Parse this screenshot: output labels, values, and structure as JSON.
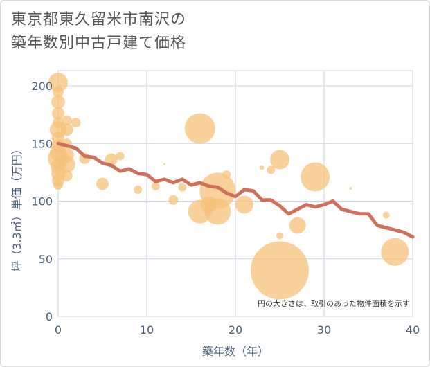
{
  "title_lines": [
    "東京都東久留米市南沢の",
    "築年数別中古戸建て価格"
  ],
  "colors": {
    "bubble": "#f5c27a",
    "line": "#d0705b",
    "grid": "#c9d6e3",
    "axis_text": "#4a5f78"
  },
  "chart_data": {
    "type": "scatter",
    "xlabel": "築年数（年）",
    "ylabel": "坪（3.3㎡）単価（万円）",
    "xlim": [
      0,
      40
    ],
    "ylim": [
      0,
      210
    ],
    "xticks": [
      0,
      10,
      20,
      30,
      40
    ],
    "yticks": [
      0,
      50,
      100,
      150,
      200
    ],
    "grid": true,
    "note": "円の大きさは、取引のあった物件面積を示す",
    "trend": {
      "x": [
        0,
        1,
        2,
        3,
        4,
        5,
        6,
        7,
        8,
        9,
        10,
        11,
        12,
        13,
        14,
        15,
        16,
        17,
        18,
        19,
        20,
        21,
        22,
        23,
        24,
        25,
        26,
        27,
        28,
        29,
        30,
        31,
        32,
        33,
        34,
        35,
        36,
        37,
        38,
        39,
        40
      ],
      "y": [
        150,
        148,
        146,
        139,
        138,
        133,
        131,
        126,
        128,
        124,
        123,
        117,
        119,
        116,
        119,
        114,
        116,
        113,
        112,
        107,
        104,
        110,
        109,
        101,
        101,
        96,
        89,
        93,
        97,
        95,
        97,
        100,
        93,
        91,
        89,
        89,
        79,
        77,
        75,
        73,
        69
      ]
    },
    "bubbles": [
      {
        "x": 0,
        "y": 203,
        "s": 14
      },
      {
        "x": 0,
        "y": 195,
        "s": 8
      },
      {
        "x": 0,
        "y": 186,
        "s": 10
      },
      {
        "x": 0,
        "y": 176,
        "s": 9
      },
      {
        "x": 0,
        "y": 168,
        "s": 8
      },
      {
        "x": 0,
        "y": 162,
        "s": 12
      },
      {
        "x": 0,
        "y": 155,
        "s": 9
      },
      {
        "x": 0,
        "y": 148,
        "s": 10
      },
      {
        "x": 0,
        "y": 142,
        "s": 12
      },
      {
        "x": 0,
        "y": 137,
        "s": 15
      },
      {
        "x": 0,
        "y": 130,
        "s": 11
      },
      {
        "x": 0,
        "y": 124,
        "s": 10
      },
      {
        "x": 0,
        "y": 118,
        "s": 9
      },
      {
        "x": 0,
        "y": 114,
        "s": 7
      },
      {
        "x": 1,
        "y": 170,
        "s": 7
      },
      {
        "x": 1,
        "y": 162,
        "s": 9
      },
      {
        "x": 1,
        "y": 150,
        "s": 7
      },
      {
        "x": 1,
        "y": 140,
        "s": 10
      },
      {
        "x": 1,
        "y": 132,
        "s": 12
      },
      {
        "x": 1,
        "y": 122,
        "s": 8
      },
      {
        "x": 2,
        "y": 168,
        "s": 7
      },
      {
        "x": 3,
        "y": 137,
        "s": 8
      },
      {
        "x": 5,
        "y": 115,
        "s": 9
      },
      {
        "x": 6,
        "y": 136,
        "s": 9
      },
      {
        "x": 7,
        "y": 139,
        "s": 6
      },
      {
        "x": 9,
        "y": 110,
        "s": 6
      },
      {
        "x": 11,
        "y": 113,
        "s": 6
      },
      {
        "x": 12,
        "y": 132,
        "s": 1.5
      },
      {
        "x": 13,
        "y": 101,
        "s": 7
      },
      {
        "x": 14,
        "y": 112,
        "s": 6
      },
      {
        "x": 16,
        "y": 163,
        "s": 22
      },
      {
        "x": 16,
        "y": 91,
        "s": 17
      },
      {
        "x": 17,
        "y": 97,
        "s": 12
      },
      {
        "x": 18,
        "y": 91,
        "s": 19
      },
      {
        "x": 18,
        "y": 109,
        "s": 26
      },
      {
        "x": 19,
        "y": 123,
        "s": 6
      },
      {
        "x": 21,
        "y": 97,
        "s": 13
      },
      {
        "x": 23,
        "y": 129,
        "s": 3
      },
      {
        "x": 24,
        "y": 127,
        "s": 6
      },
      {
        "x": 25,
        "y": 136,
        "s": 14
      },
      {
        "x": 25,
        "y": 70,
        "s": 5
      },
      {
        "x": 25,
        "y": 40,
        "s": 42
      },
      {
        "x": 27,
        "y": 79,
        "s": 12
      },
      {
        "x": 29,
        "y": 121,
        "s": 21
      },
      {
        "x": 33,
        "y": 111,
        "s": 2
      },
      {
        "x": 37,
        "y": 88,
        "s": 5
      },
      {
        "x": 38,
        "y": 56,
        "s": 20
      }
    ]
  }
}
